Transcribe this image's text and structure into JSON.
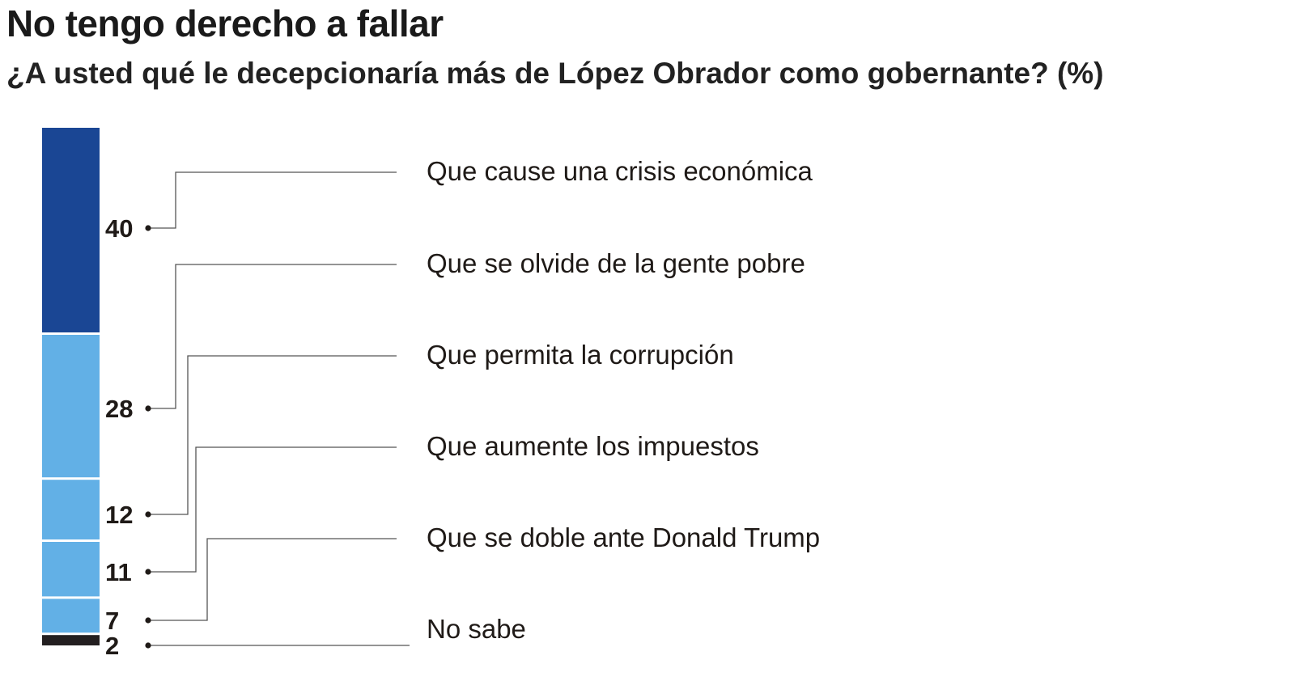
{
  "title": "No tengo derecho a fallar",
  "subtitle": "¿A usted qué le decepcionaría más de López Obrador como gobernante? (%)",
  "chart_data": {
    "type": "bar",
    "orientation": "stacked-vertical",
    "categories": [
      "Que cause una crisis económica",
      "Que se olvide de la gente pobre",
      "Que permita la corrupción",
      "Que aumente los impuestos",
      "Que se doble ante Donald Trump",
      "No sabe"
    ],
    "values": [
      40,
      28,
      12,
      11,
      7,
      2
    ],
    "value_labels": [
      "40",
      "28",
      "12",
      "11",
      "7",
      "2"
    ],
    "colors": [
      "#1a4694",
      "#62b0e6",
      "#62b0e6",
      "#62b0e6",
      "#62b0e6",
      "#231f20"
    ],
    "ylim": [
      0,
      100
    ]
  }
}
